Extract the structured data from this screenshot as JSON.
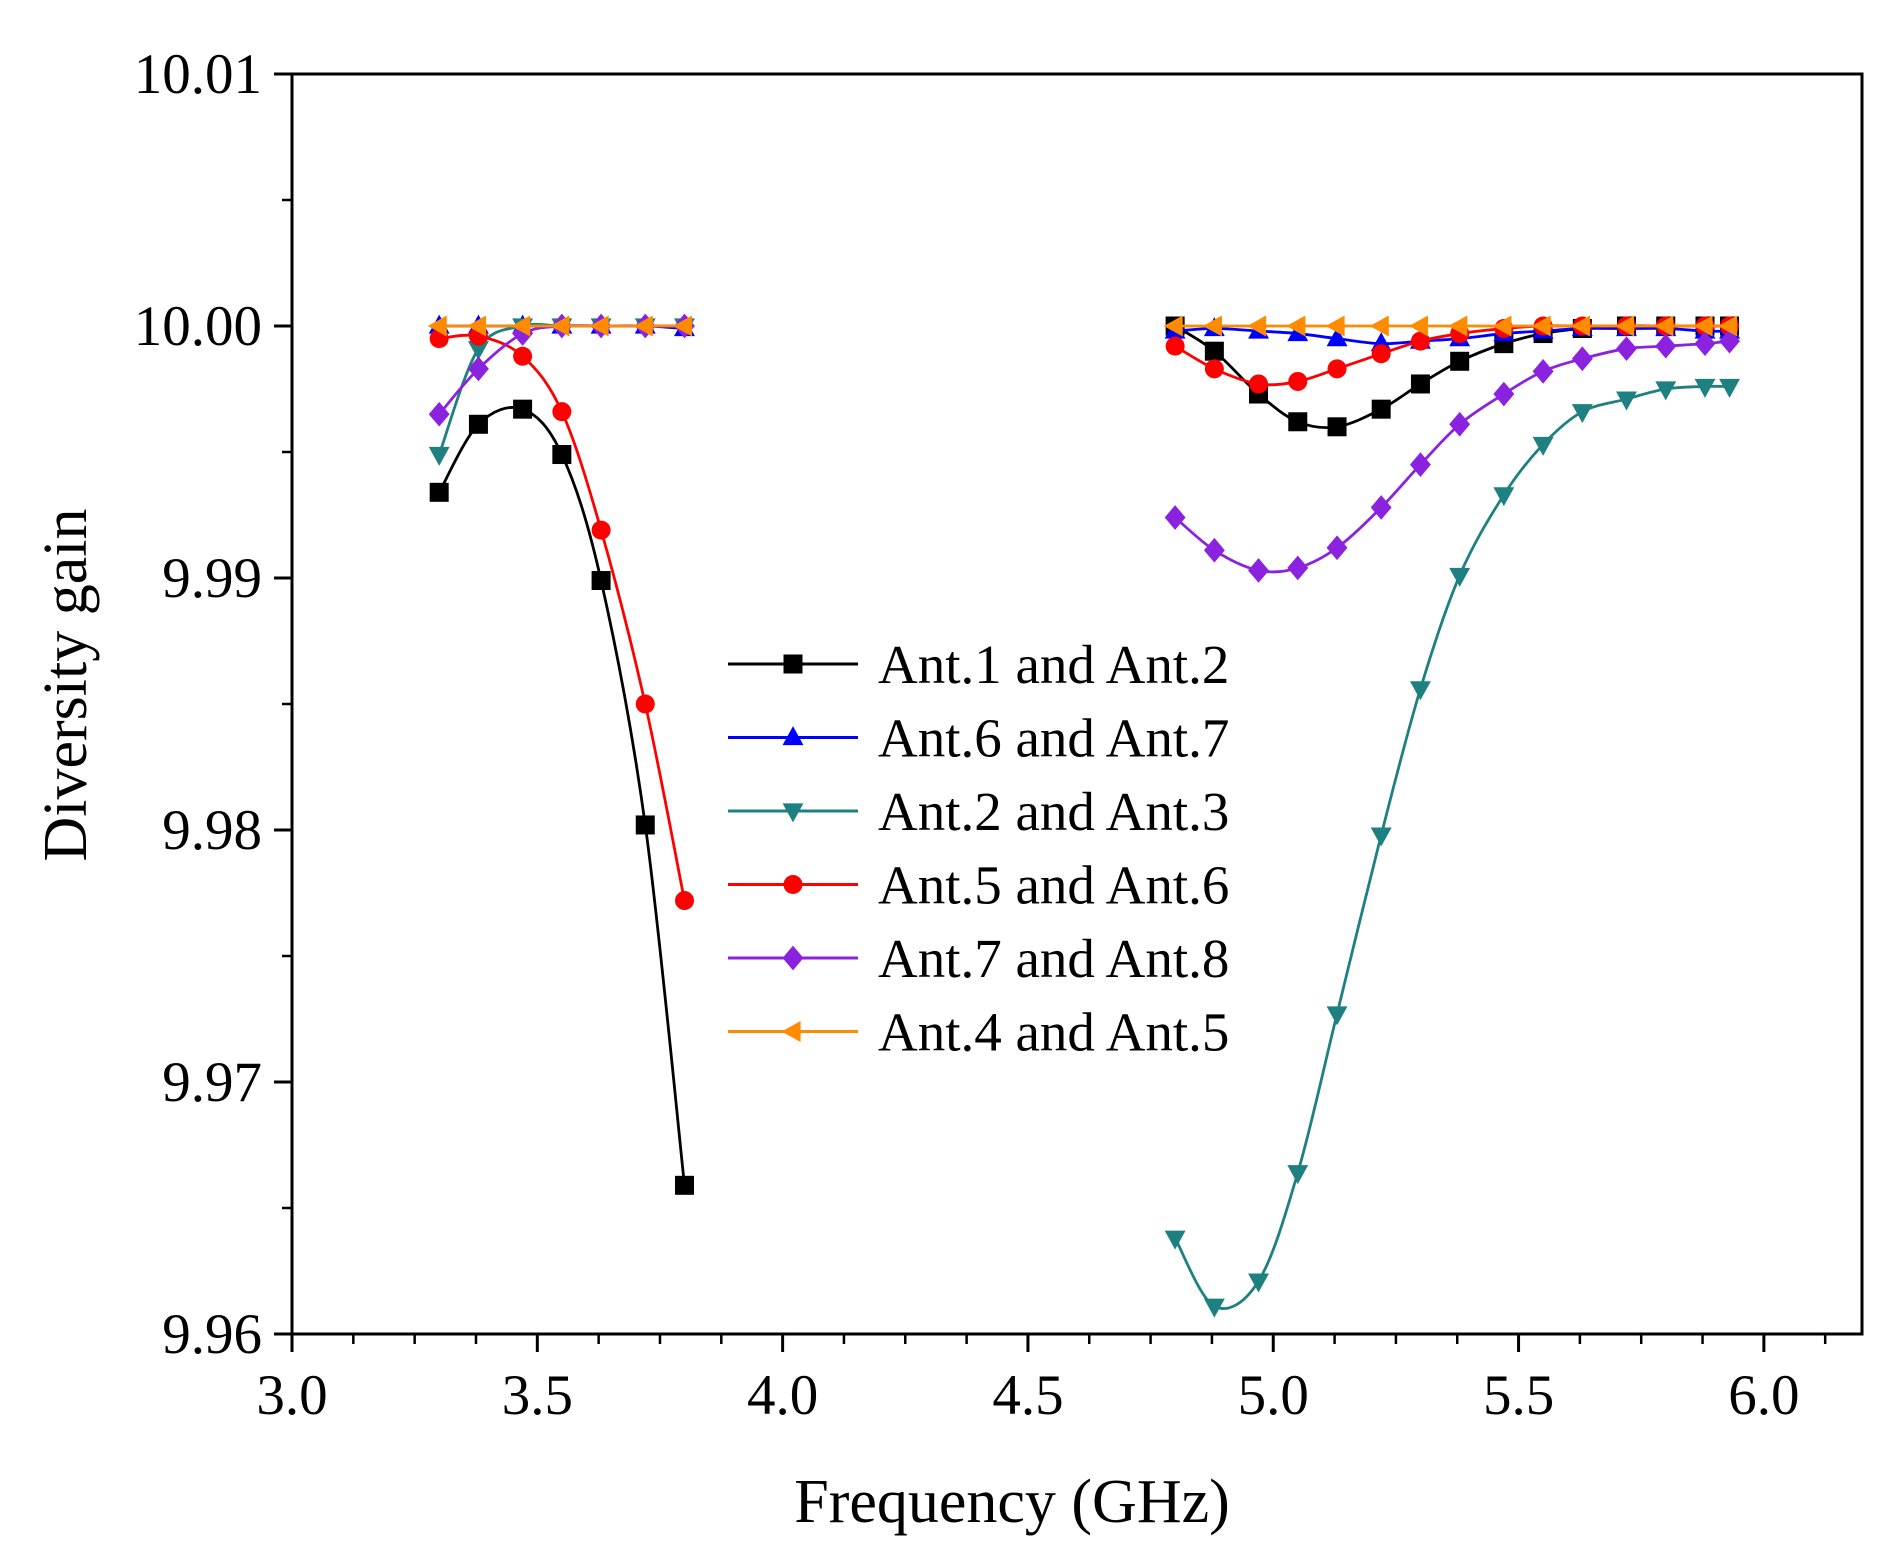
{
  "chart_data": {
    "type": "line",
    "title": "",
    "xlabel": "Frequency (GHz)",
    "ylabel": "Diversity gain",
    "xlim": [
      3.0,
      6.2
    ],
    "ylim": [
      9.96,
      10.01
    ],
    "xticks": [
      3.0,
      3.5,
      4.0,
      4.5,
      5.0,
      5.5,
      6.0
    ],
    "xtick_labels": [
      "3.0",
      "3.5",
      "4.0",
      "4.5",
      "5.0",
      "5.5",
      "6.0"
    ],
    "yticks": [
      9.96,
      9.97,
      9.98,
      9.99,
      10.0,
      10.01
    ],
    "ytick_labels": [
      "9.96",
      "9.97",
      "9.98",
      "9.99",
      "10.00",
      "10.01"
    ],
    "grid": false,
    "legend_position": "center",
    "series": [
      {
        "name": "Ant.1 and Ant.2",
        "color": "#000000",
        "marker": "square",
        "segments": [
          {
            "x": [
              3.3,
              3.38,
              3.47,
              3.55,
              3.63,
              3.72,
              3.8
            ],
            "y": [
              9.9934,
              9.9961,
              9.9967,
              9.9949,
              9.9899,
              9.9802,
              9.9659
            ]
          },
          {
            "x": [
              4.8,
              4.88,
              4.97,
              5.05,
              5.13,
              5.22,
              5.3,
              5.38,
              5.47,
              5.55,
              5.63,
              5.72,
              5.8,
              5.88,
              5.93
            ],
            "y": [
              10.0,
              9.999,
              9.9973,
              9.9962,
              9.996,
              9.9967,
              9.9977,
              9.9986,
              9.9993,
              9.9997,
              9.9999,
              10.0,
              10.0,
              10.0,
              10.0
            ]
          }
        ]
      },
      {
        "name": "Ant.6 and Ant.7",
        "color": "#0000ff",
        "marker": "triangle-up",
        "segments": [
          {
            "x": [
              3.3,
              3.38,
              3.47,
              3.55,
              3.63,
              3.72,
              3.8
            ],
            "y": [
              10.0,
              10.0,
              10.0,
              10.0,
              10.0,
              10.0,
              9.9999
            ]
          },
          {
            "x": [
              4.8,
              4.88,
              4.97,
              5.05,
              5.13,
              5.22,
              5.3,
              5.38,
              5.47,
              5.55,
              5.63,
              5.72,
              5.8,
              5.88,
              5.93
            ],
            "y": [
              9.9998,
              9.9999,
              9.9998,
              9.9997,
              9.9995,
              9.9993,
              9.9994,
              9.9995,
              9.9997,
              9.9998,
              9.9999,
              9.9999,
              9.9999,
              9.9998,
              9.9998
            ]
          }
        ]
      },
      {
        "name": "Ant.2 and Ant.3",
        "color": "#1e8080",
        "marker": "triangle-down",
        "segments": [
          {
            "x": [
              3.3,
              3.38,
              3.47,
              3.55,
              3.63,
              3.72,
              3.8
            ],
            "y": [
              9.9949,
              9.9991,
              10.0,
              10.0,
              10.0,
              10.0,
              10.0
            ]
          },
          {
            "x": [
              4.8,
              4.88,
              4.97,
              5.05,
              5.13,
              5.22,
              5.3,
              5.38,
              5.47,
              5.55,
              5.63,
              5.72,
              5.8,
              5.88,
              5.93
            ],
            "y": [
              9.9638,
              9.9611,
              9.9621,
              9.9664,
              9.9727,
              9.9798,
              9.9856,
              9.9901,
              9.9933,
              9.9953,
              9.9966,
              9.9971,
              9.9975,
              9.9976,
              9.9976
            ]
          }
        ]
      },
      {
        "name": "Ant.5 and Ant.6",
        "color": "#ff0000",
        "marker": "circle",
        "segments": [
          {
            "x": [
              3.3,
              3.38,
              3.47,
              3.55,
              3.63,
              3.72,
              3.8
            ],
            "y": [
              9.9995,
              9.9996,
              9.9988,
              9.9966,
              9.9919,
              9.985,
              9.9772
            ]
          },
          {
            "x": [
              4.8,
              4.88,
              4.97,
              5.05,
              5.13,
              5.22,
              5.3,
              5.38,
              5.47,
              5.55,
              5.63,
              5.72,
              5.8,
              5.88,
              5.93
            ],
            "y": [
              9.9992,
              9.9983,
              9.9977,
              9.9978,
              9.9983,
              9.9989,
              9.9994,
              9.9997,
              9.9999,
              10.0,
              10.0,
              10.0,
              10.0,
              10.0,
              10.0
            ]
          }
        ]
      },
      {
        "name": "Ant.7 and Ant.8",
        "color": "#8b22e0",
        "marker": "diamond",
        "segments": [
          {
            "x": [
              3.3,
              3.38,
              3.47,
              3.55,
              3.63,
              3.72,
              3.8
            ],
            "y": [
              9.9965,
              9.9983,
              9.9997,
              10.0,
              10.0,
              10.0,
              10.0
            ]
          },
          {
            "x": [
              4.8,
              4.88,
              4.97,
              5.05,
              5.13,
              5.22,
              5.3,
              5.38,
              5.47,
              5.55,
              5.63,
              5.72,
              5.8,
              5.88,
              5.93
            ],
            "y": [
              9.9924,
              9.9911,
              9.9903,
              9.9904,
              9.9912,
              9.9928,
              9.9945,
              9.9961,
              9.9973,
              9.9982,
              9.9987,
              9.9991,
              9.9992,
              9.9993,
              9.9994
            ]
          }
        ]
      },
      {
        "name": "Ant.4 and Ant.5",
        "color": "#ff8c00",
        "marker": "triangle-left",
        "segments": [
          {
            "x": [
              3.3,
              3.38,
              3.47,
              3.55,
              3.63,
              3.72,
              3.8
            ],
            "y": [
              10.0,
              10.0,
              10.0,
              10.0,
              10.0,
              10.0,
              10.0
            ]
          },
          {
            "x": [
              4.8,
              4.88,
              4.97,
              5.05,
              5.13,
              5.22,
              5.3,
              5.38,
              5.47,
              5.55,
              5.63,
              5.72,
              5.8,
              5.88,
              5.93
            ],
            "y": [
              10.0,
              10.0,
              10.0,
              10.0,
              10.0,
              10.0,
              10.0,
              10.0,
              10.0,
              10.0,
              10.0,
              10.0,
              10.0,
              10.0,
              10.0
            ]
          }
        ]
      }
    ]
  }
}
